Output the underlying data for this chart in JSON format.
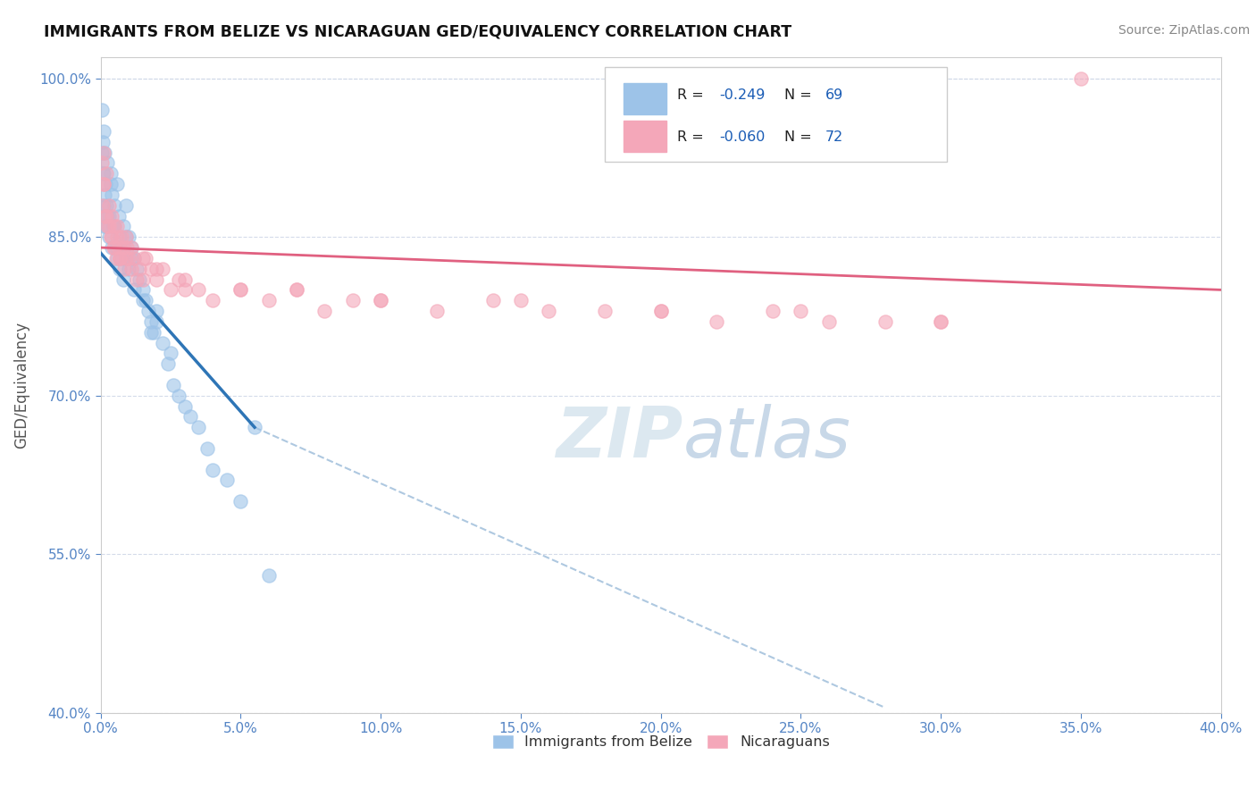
{
  "title": "IMMIGRANTS FROM BELIZE VS NICARAGUAN GED/EQUIVALENCY CORRELATION CHART",
  "source": "Source: ZipAtlas.com",
  "ylabel_label": "GED/Equivalency",
  "legend_label1": "Immigrants from Belize",
  "legend_label2": "Nicaraguans",
  "R1": -0.249,
  "N1": 69,
  "R2": -0.06,
  "N2": 72,
  "color_blue": "#9dc3e8",
  "color_pink": "#f4a7b9",
  "color_blue_line": "#2e75b6",
  "color_pink_line": "#e06080",
  "color_dashed": "#aec8e0",
  "watermark_color": "#dce8f0",
  "xlim": [
    0,
    40
  ],
  "ylim": [
    40,
    102
  ],
  "xticks": [
    0,
    5,
    10,
    15,
    20,
    25,
    30,
    35,
    40
  ],
  "yticks": [
    40,
    55,
    70,
    85,
    100
  ],
  "blue_x": [
    0.05,
    0.08,
    0.1,
    0.12,
    0.15,
    0.18,
    0.2,
    0.25,
    0.3,
    0.35,
    0.4,
    0.45,
    0.5,
    0.55,
    0.6,
    0.65,
    0.7,
    0.75,
    0.8,
    0.85,
    0.9,
    0.95,
    1.0,
    1.1,
    1.2,
    1.3,
    1.4,
    1.5,
    1.6,
    1.7,
    1.8,
    1.9,
    2.0,
    2.2,
    2.4,
    2.6,
    2.8,
    3.0,
    3.2,
    3.5,
    3.8,
    4.0,
    4.5,
    5.0,
    0.1,
    0.2,
    0.3,
    0.4,
    0.5,
    0.6,
    0.7,
    0.8,
    0.9,
    1.0,
    1.2,
    1.5,
    2.0,
    0.15,
    0.25,
    0.35,
    0.6,
    1.1,
    1.8,
    2.5,
    5.5,
    6.0,
    0.05,
    0.08,
    0.12
  ],
  "blue_y": [
    97.0,
    91.0,
    95.0,
    88.0,
    93.0,
    90.0,
    86.0,
    92.0,
    87.0,
    91.0,
    89.0,
    86.0,
    88.0,
    84.0,
    90.0,
    87.0,
    85.0,
    83.0,
    86.0,
    84.0,
    88.0,
    83.0,
    85.0,
    84.0,
    83.0,
    82.0,
    81.0,
    80.0,
    79.0,
    78.0,
    77.0,
    76.0,
    78.0,
    75.0,
    73.0,
    71.0,
    70.0,
    69.0,
    68.0,
    67.0,
    65.0,
    63.0,
    62.0,
    60.0,
    86.0,
    88.0,
    85.0,
    84.0,
    86.0,
    83.0,
    82.0,
    81.0,
    85.0,
    82.0,
    80.0,
    79.0,
    77.0,
    89.0,
    87.0,
    90.0,
    84.0,
    83.0,
    76.0,
    74.0,
    67.0,
    53.0,
    93.0,
    94.0,
    91.0
  ],
  "pink_x": [
    0.05,
    0.08,
    0.1,
    0.12,
    0.15,
    0.2,
    0.25,
    0.3,
    0.35,
    0.4,
    0.45,
    0.5,
    0.55,
    0.6,
    0.65,
    0.7,
    0.75,
    0.8,
    0.85,
    0.9,
    0.95,
    1.0,
    1.1,
    1.2,
    1.3,
    1.4,
    1.5,
    1.6,
    1.8,
    2.0,
    2.2,
    2.5,
    2.8,
    3.0,
    3.5,
    4.0,
    5.0,
    6.0,
    7.0,
    8.0,
    9.0,
    10.0,
    12.0,
    14.0,
    16.0,
    18.0,
    20.0,
    22.0,
    24.0,
    26.0,
    28.0,
    30.0,
    0.1,
    0.2,
    0.3,
    0.4,
    0.5,
    0.6,
    0.7,
    0.9,
    1.1,
    1.5,
    2.0,
    3.0,
    5.0,
    7.0,
    10.0,
    15.0,
    20.0,
    25.0,
    30.0,
    35.0
  ],
  "pink_y": [
    92.0,
    88.0,
    93.0,
    90.0,
    87.0,
    91.0,
    86.0,
    88.0,
    85.0,
    87.0,
    84.0,
    86.0,
    83.0,
    85.0,
    84.0,
    83.0,
    85.0,
    84.0,
    82.0,
    83.0,
    84.0,
    83.0,
    82.0,
    83.0,
    81.0,
    82.0,
    81.0,
    83.0,
    82.0,
    81.0,
    82.0,
    80.0,
    81.0,
    80.0,
    80.0,
    79.0,
    80.0,
    79.0,
    80.0,
    78.0,
    79.0,
    79.0,
    78.0,
    79.0,
    78.0,
    78.0,
    78.0,
    77.0,
    78.0,
    77.0,
    77.0,
    77.0,
    90.0,
    87.0,
    86.0,
    85.0,
    84.0,
    86.0,
    83.0,
    85.0,
    84.0,
    83.0,
    82.0,
    81.0,
    80.0,
    80.0,
    79.0,
    79.0,
    78.0,
    78.0,
    77.0,
    100.0
  ],
  "blue_line_x0": 0.0,
  "blue_line_y0": 83.5,
  "blue_line_x1": 5.5,
  "blue_line_y1": 67.0,
  "blue_dash_x0": 5.5,
  "blue_dash_y0": 67.0,
  "blue_dash_x1": 28.0,
  "blue_dash_y1": 40.5,
  "pink_line_x0": 0.0,
  "pink_line_y0": 84.0,
  "pink_line_x1": 40.0,
  "pink_line_y1": 80.0
}
